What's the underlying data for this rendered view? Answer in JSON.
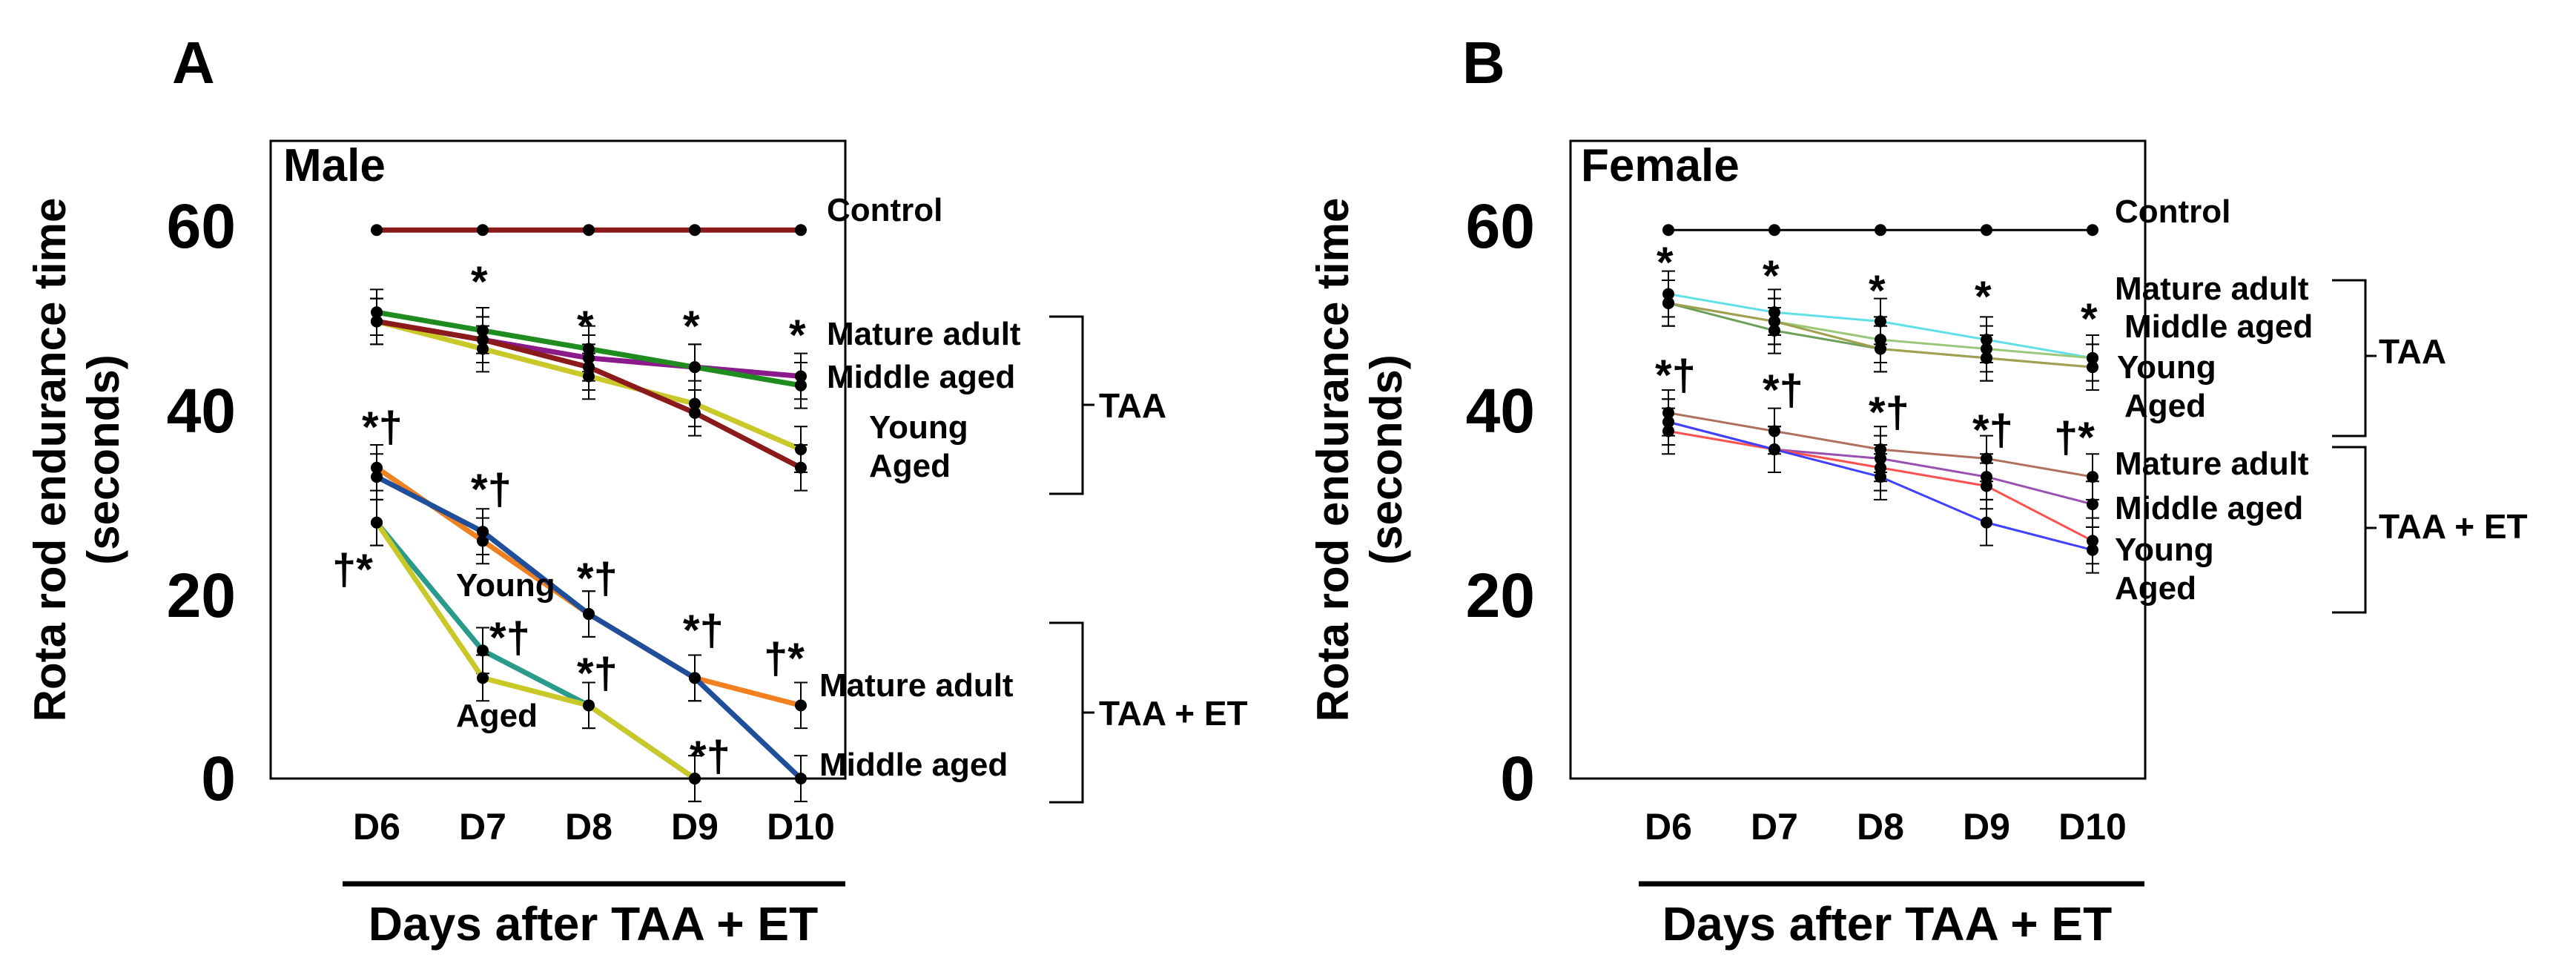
{
  "chart_data": [
    {
      "type": "line",
      "panel_letter": "A",
      "title": "Male",
      "xlabel": "Days after TAA + ET",
      "ylabel_line1": "Rota rod endurance time",
      "ylabel_line2": "(seconds)",
      "categories": [
        "D6",
        "D7",
        "D8",
        "D9",
        "D10"
      ],
      "ylim": [
        0,
        70
      ],
      "yticks": [
        "0",
        "20",
        "40",
        "60"
      ],
      "series": [
        {
          "name": "Control",
          "color": "#8b1a1a",
          "values": [
            60,
            60,
            60,
            60,
            60
          ]
        },
        {
          "name": "TAA Mature adult",
          "color": "#8b1a8b",
          "values": [
            50,
            48,
            46,
            45,
            44
          ]
        },
        {
          "name": "TAA Middle aged",
          "color": "#1e8c1e",
          "values": [
            51,
            49,
            47,
            45,
            43
          ]
        },
        {
          "name": "TAA Young",
          "color": "#c8c828",
          "values": [
            50,
            47,
            44,
            41,
            36
          ]
        },
        {
          "name": "TAA Aged",
          "color": "#8b1a1a",
          "values": [
            50,
            48,
            45,
            40,
            34
          ]
        },
        {
          "name": "TAA + ET Mature adult",
          "color": "#f08020",
          "values": [
            34,
            26,
            18,
            11,
            8
          ]
        },
        {
          "name": "TAA + ET Middle aged",
          "color": "#1f4e9a",
          "values": [
            33,
            27,
            18,
            11,
            0
          ]
        },
        {
          "name": "TAA + ET Young",
          "color": "#2a9a8a",
          "values": [
            28,
            14,
            8,
            0,
            null
          ]
        },
        {
          "name": "TAA + ET Aged",
          "color": "#c8c828",
          "values": [
            28,
            11,
            8,
            0,
            null
          ]
        }
      ],
      "labels": {
        "control": "Control",
        "taa_mature": "Mature adult",
        "taa_middle": "Middle aged",
        "taa_young": "Young",
        "taa_aged": "Aged",
        "et_mature": "Mature adult",
        "et_middle": "Middle aged",
        "young_inline": "Young",
        "aged_inline": "Aged"
      },
      "groups": [
        "TAA",
        "TAA + ET"
      ],
      "significance": {
        "star": "*",
        "star_dagger": "*†",
        "dagger_star": "†*"
      }
    },
    {
      "type": "line",
      "panel_letter": "B",
      "title": "Female",
      "xlabel": "Days after TAA + ET",
      "ylabel_line1": "Rota rod endurance time",
      "ylabel_line2": "(seconds)",
      "categories": [
        "D6",
        "D7",
        "D8",
        "D9",
        "D10"
      ],
      "ylim": [
        0,
        70
      ],
      "yticks": [
        "0",
        "20",
        "40",
        "60"
      ],
      "series": [
        {
          "name": "Control",
          "color": "#000000",
          "values": [
            60,
            60,
            60,
            60,
            60
          ]
        },
        {
          "name": "TAA Mature adult",
          "color": "#5fe0e8",
          "values": [
            53,
            51,
            50,
            48,
            46
          ]
        },
        {
          "name": "TAA Middle aged",
          "color": "#9ac87a",
          "values": [
            52,
            50,
            48,
            47,
            46
          ]
        },
        {
          "name": "TAA Young",
          "color": "#6aa05a",
          "values": [
            52,
            49,
            47,
            46,
            45
          ]
        },
        {
          "name": "TAA Aged",
          "color": "#a0a050",
          "values": [
            52,
            50,
            47,
            46,
            45
          ]
        },
        {
          "name": "TAA + ET Mature adult",
          "color": "#b07060",
          "values": [
            40,
            38,
            36,
            35,
            33
          ]
        },
        {
          "name": "TAA + ET Middle aged",
          "color": "#9a50b0",
          "values": [
            39,
            36,
            35,
            33,
            30
          ]
        },
        {
          "name": "TAA + ET Young",
          "color": "#ff5050",
          "values": [
            38,
            36,
            34,
            32,
            26
          ]
        },
        {
          "name": "TAA + ET Aged",
          "color": "#4040ff",
          "values": [
            39,
            36,
            33,
            28,
            25
          ]
        }
      ],
      "labels": {
        "control": "Control",
        "taa_mature": "Mature adult",
        "taa_middle": "Middle aged",
        "taa_young": "Young",
        "taa_aged": "Aged",
        "et_mature": "Mature adult",
        "et_middle": "Middle aged",
        "et_young": "Young",
        "et_aged": "Aged"
      },
      "groups": [
        "TAA",
        "TAA + ET"
      ],
      "significance": {
        "star": "*",
        "star_dagger": "*†",
        "dagger_star": "†*"
      }
    }
  ]
}
